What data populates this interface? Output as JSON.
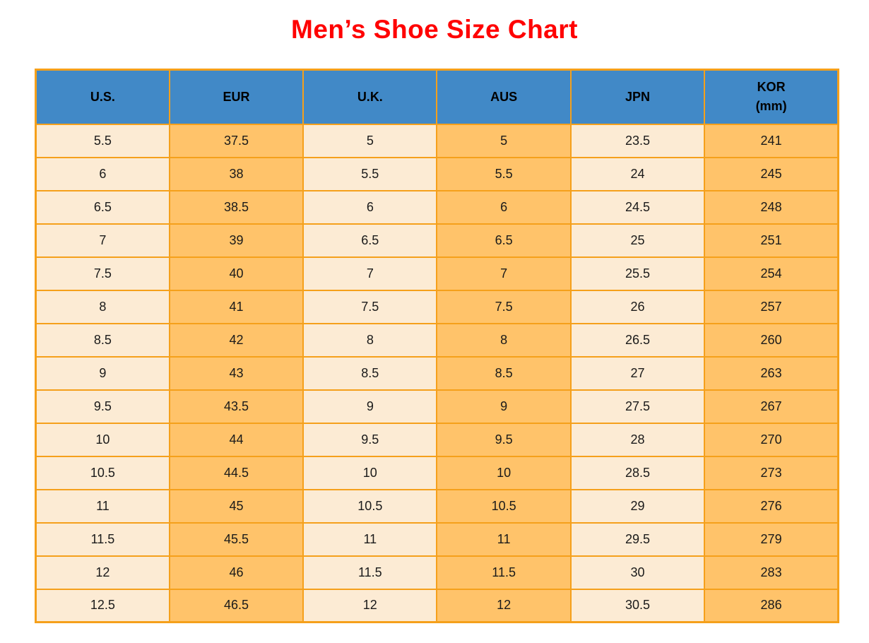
{
  "page": {
    "title": "Men’s Shoe Size Chart"
  },
  "colors": {
    "page_bg": "#FFFFFF",
    "title": "#FF0000",
    "header_bg": "#4189C7",
    "header_text": "#000000",
    "cell_text": "#1A1A1A",
    "cream_cell": "#FCEBD4",
    "orange_cell": "#FFC36A",
    "border": "#F5A01B"
  },
  "table": {
    "headers": [
      {
        "label": "U.S.",
        "sublabel": ""
      },
      {
        "label": "EUR",
        "sublabel": ""
      },
      {
        "label": "U.K.",
        "sublabel": ""
      },
      {
        "label": "AUS",
        "sublabel": ""
      },
      {
        "label": "JPN",
        "sublabel": ""
      },
      {
        "label": "KOR",
        "sublabel": "(mm)"
      }
    ],
    "rows": [
      [
        "5.5",
        "37.5",
        "5",
        "5",
        "23.5",
        "241"
      ],
      [
        "6",
        "38",
        "5.5",
        "5.5",
        "24",
        "245"
      ],
      [
        "6.5",
        "38.5",
        "6",
        "6",
        "24.5",
        "248"
      ],
      [
        "7",
        "39",
        "6.5",
        "6.5",
        "25",
        "251"
      ],
      [
        "7.5",
        "40",
        "7",
        "7",
        "25.5",
        "254"
      ],
      [
        "8",
        "41",
        "7.5",
        "7.5",
        "26",
        "257"
      ],
      [
        "8.5",
        "42",
        "8",
        "8",
        "26.5",
        "260"
      ],
      [
        "9",
        "43",
        "8.5",
        "8.5",
        "27",
        "263"
      ],
      [
        "9.5",
        "43.5",
        "9",
        "9",
        "27.5",
        "267"
      ],
      [
        "10",
        "44",
        "9.5",
        "9.5",
        "28",
        "270"
      ],
      [
        "10.5",
        "44.5",
        "10",
        "10",
        "28.5",
        "273"
      ],
      [
        "11",
        "45",
        "10.5",
        "10.5",
        "29",
        "276"
      ],
      [
        "11.5",
        "45.5",
        "11",
        "11",
        "29.5",
        "279"
      ],
      [
        "12",
        "46",
        "11.5",
        "11.5",
        "30",
        "283"
      ],
      [
        "12.5",
        "46.5",
        "12",
        "12",
        "30.5",
        "286"
      ]
    ]
  },
  "chart_data": {
    "type": "table",
    "title": "Men’s Shoe Size Chart",
    "columns": [
      "U.S.",
      "EUR",
      "U.K.",
      "AUS",
      "JPN",
      "KOR (mm)"
    ],
    "rows": [
      [
        5.5,
        37.5,
        5,
        5,
        23.5,
        241
      ],
      [
        6,
        38,
        5.5,
        5.5,
        24,
        245
      ],
      [
        6.5,
        38.5,
        6,
        6,
        24.5,
        248
      ],
      [
        7,
        39,
        6.5,
        6.5,
        25,
        251
      ],
      [
        7.5,
        40,
        7,
        7,
        25.5,
        254
      ],
      [
        8,
        41,
        7.5,
        7.5,
        26,
        257
      ],
      [
        8.5,
        42,
        8,
        8,
        26.5,
        260
      ],
      [
        9,
        43,
        8.5,
        8.5,
        27,
        263
      ],
      [
        9.5,
        43.5,
        9,
        9,
        27.5,
        267
      ],
      [
        10,
        44,
        9.5,
        9.5,
        28,
        270
      ],
      [
        10.5,
        44.5,
        10,
        10,
        28.5,
        273
      ],
      [
        11,
        45,
        10.5,
        10.5,
        29,
        276
      ],
      [
        11.5,
        45.5,
        11,
        11,
        29.5,
        279
      ],
      [
        12,
        46,
        11.5,
        11.5,
        30,
        283
      ],
      [
        12.5,
        46.5,
        12,
        12,
        30.5,
        286
      ]
    ]
  }
}
